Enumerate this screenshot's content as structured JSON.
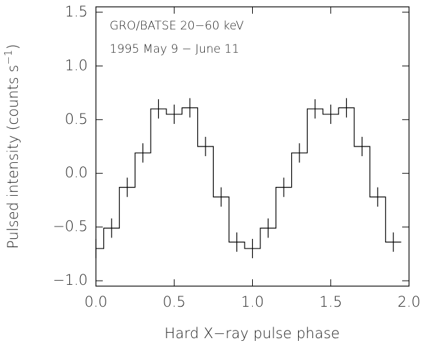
{
  "chart_data": {
    "type": "step",
    "xlabel": "Hard X−ray pulse phase",
    "ylabel": "Pulsed intensity (counts s",
    "ylabel_sup": "−1",
    "ylabel_end": ")",
    "annotations": [
      "GRO/BATSE 20−60 keV",
      "1995 May 9 − June 11"
    ],
    "x": [
      0.0,
      0.1,
      0.2,
      0.3,
      0.4,
      0.5,
      0.6,
      0.7,
      0.8,
      0.9,
      1.0,
      1.1,
      1.2,
      1.3,
      1.4,
      1.5,
      1.6,
      1.7,
      1.8,
      1.9
    ],
    "values": [
      -0.7,
      -0.51,
      -0.13,
      0.19,
      0.6,
      0.55,
      0.61,
      0.25,
      -0.22,
      -0.64,
      -0.7,
      -0.51,
      -0.13,
      0.19,
      0.6,
      0.55,
      0.61,
      0.25,
      -0.22,
      -0.64
    ],
    "errors": [
      0.09,
      0.09,
      0.09,
      0.09,
      0.09,
      0.09,
      0.09,
      0.09,
      0.09,
      0.09,
      0.09,
      0.09,
      0.09,
      0.09,
      0.09,
      0.09,
      0.09,
      0.09,
      0.09,
      0.09
    ],
    "color": "#000000",
    "xlim": [
      0,
      2
    ],
    "ylim": [
      -1.05,
      1.55
    ],
    "xticks": [
      {
        "value": 0,
        "label": "0.0"
      },
      0.5,
      {
        "value": 1,
        "label": "1.0"
      },
      1.5,
      {
        "value": 2,
        "label": "2.0"
      }
    ],
    "yticks": [
      {
        "value": -1,
        "label": "−1.0"
      },
      {
        "value": -0.5,
        "label": "−0.5"
      },
      {
        "value": 0,
        "label": "0.0"
      },
      0.5,
      {
        "value": 1,
        "label": "1.0"
      },
      1.5
    ]
  }
}
